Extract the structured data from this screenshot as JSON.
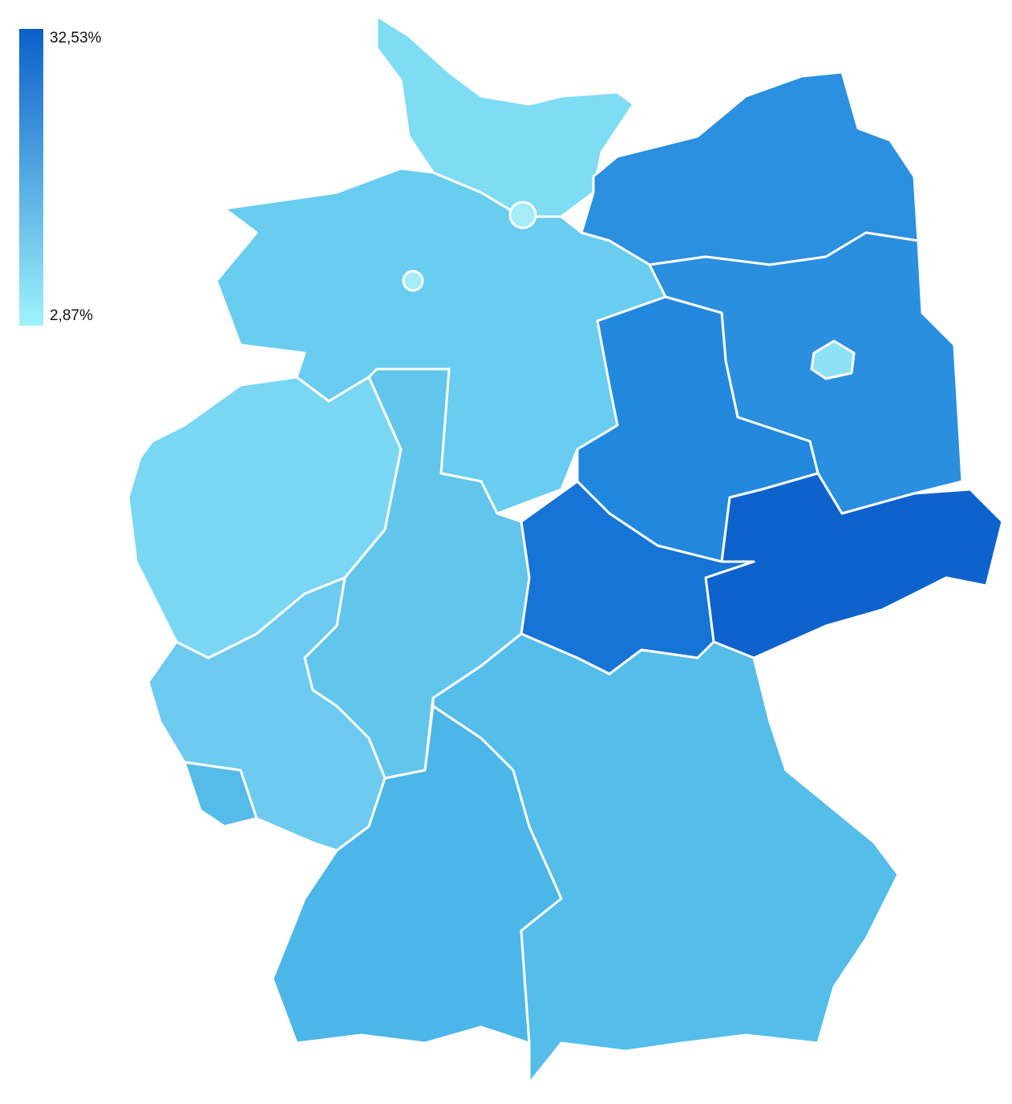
{
  "legend": {
    "max": "32,53%",
    "min": "2,87%",
    "colors": [
      "#0b5fc9",
      "#9ef4fb"
    ]
  }
}
